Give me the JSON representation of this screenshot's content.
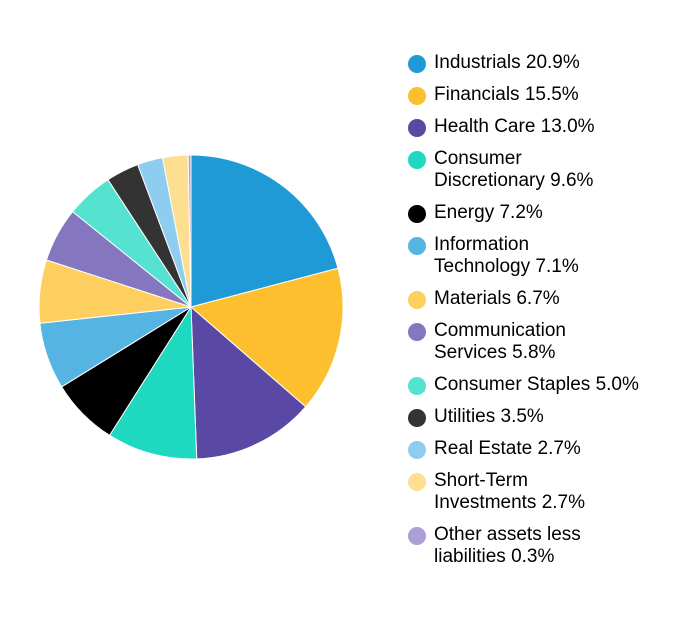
{
  "chart_data": {
    "type": "pie",
    "title": "",
    "legend_position": "right",
    "slices": [
      {
        "name": "Industrials",
        "value": 20.9,
        "label": "Industrials 20.9%",
        "color": "#1f9ad6"
      },
      {
        "name": "Financials",
        "value": 15.5,
        "label": "Financials 15.5%",
        "color": "#fdbf2d"
      },
      {
        "name": "Health Care",
        "value": 13.0,
        "label": "Health Care 13.0%",
        "color": "#5a48a5"
      },
      {
        "name": "Consumer Discretionary",
        "value": 9.6,
        "label": "Consumer\nDiscretionary 9.6%",
        "color": "#1ed8c0"
      },
      {
        "name": "Energy",
        "value": 7.2,
        "label": "Energy 7.2%",
        "color": "#000000"
      },
      {
        "name": "Information Technology",
        "value": 7.1,
        "label": "Information\nTechnology 7.1%",
        "color": "#56b4e3"
      },
      {
        "name": "Materials",
        "value": 6.7,
        "label": "Materials 6.7%",
        "color": "#fecf5f"
      },
      {
        "name": "Communication Services",
        "value": 5.8,
        "label": "Communication\nServices 5.8%",
        "color": "#8477c0"
      },
      {
        "name": "Consumer Staples",
        "value": 5.0,
        "label": "Consumer Staples 5.0%",
        "color": "#56e2d0"
      },
      {
        "name": "Utilities",
        "value": 3.5,
        "label": "Utilities 3.5%",
        "color": "#333333"
      },
      {
        "name": "Real Estate",
        "value": 2.7,
        "label": "Real Estate 2.7%",
        "color": "#8ecdf0"
      },
      {
        "name": "Short-Term Investments",
        "value": 2.7,
        "label": "Short-Term\nInvestments 2.7%",
        "color": "#fede90"
      },
      {
        "name": "Other assets less liabilities",
        "value": 0.3,
        "label": "Other assets less\nliabilities 0.3%",
        "color": "#ab9fd6"
      }
    ]
  }
}
